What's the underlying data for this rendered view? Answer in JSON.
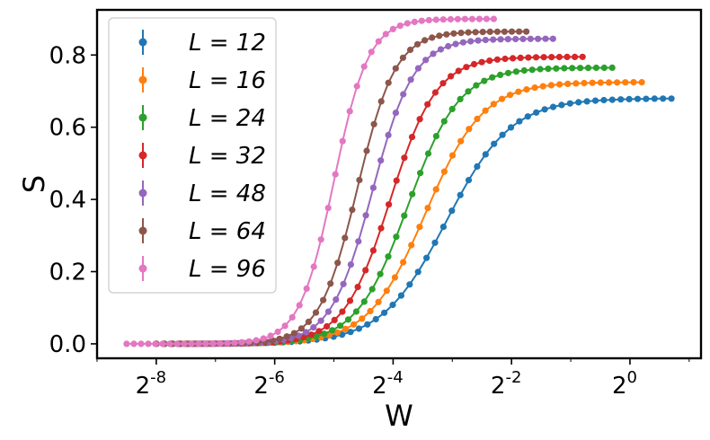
{
  "chart_data": {
    "type": "scatter",
    "title": "",
    "xlabel": "W",
    "ylabel": "S",
    "xscale": "log2",
    "xlim_log2": [
      -9.0,
      1.2
    ],
    "ylim": [
      -0.04,
      0.925
    ],
    "grid": false,
    "legend_position": "top-left",
    "x_ticks": [
      {
        "base": "2",
        "exp": "-8",
        "log2": -8
      },
      {
        "base": "2",
        "exp": "-6",
        "log2": -6
      },
      {
        "base": "2",
        "exp": "-4",
        "log2": -4
      },
      {
        "base": "2",
        "exp": "-2",
        "log2": -2
      },
      {
        "base": "2",
        "exp": "0",
        "log2": 0
      }
    ],
    "y_ticks": [
      {
        "label": "0.0",
        "value": 0.0
      },
      {
        "label": "0.2",
        "value": 0.2
      },
      {
        "label": "0.4",
        "value": 0.4
      },
      {
        "label": "0.6",
        "value": 0.6
      },
      {
        "label": "0.8",
        "value": 0.8
      }
    ],
    "series": [
      {
        "name": "L = 12",
        "legend_label": "L = 12",
        "color": "#1f77b4",
        "log2_w_start": -8.0,
        "log2_w_end": 0.7,
        "points": 62,
        "log2_w_mid": -3.1,
        "s_max": 0.68,
        "steepness": 1.15
      },
      {
        "name": "L = 16",
        "legend_label": "L = 16",
        "color": "#ff7f0e",
        "log2_w_start": -8.0,
        "log2_w_end": 0.2,
        "points": 60,
        "log2_w_mid": -3.45,
        "s_max": 0.725,
        "steepness": 1.3
      },
      {
        "name": "L = 24",
        "legend_label": "L = 24",
        "color": "#2ca02c",
        "log2_w_start": -8.0,
        "log2_w_end": -0.3,
        "points": 58,
        "log2_w_mid": -3.75,
        "s_max": 0.765,
        "steepness": 1.45
      },
      {
        "name": "L = 32",
        "legend_label": "L = 32",
        "color": "#d62728",
        "log2_w_start": -8.0,
        "log2_w_end": -0.8,
        "points": 56,
        "log2_w_mid": -4.05,
        "s_max": 0.795,
        "steepness": 1.6
      },
      {
        "name": "L = 48",
        "legend_label": "L = 48",
        "color": "#9467bd",
        "log2_w_start": -8.0,
        "log2_w_end": -1.3,
        "points": 54,
        "log2_w_mid": -4.35,
        "s_max": 0.845,
        "steepness": 1.8
      },
      {
        "name": "L = 64",
        "legend_label": "L = 64",
        "color": "#8c564b",
        "log2_w_start": -8.0,
        "log2_w_end": -1.75,
        "points": 52,
        "log2_w_mid": -4.6,
        "s_max": 0.865,
        "steepness": 1.95
      },
      {
        "name": "L = 96",
        "legend_label": "L = 96",
        "color": "#e377c2",
        "log2_w_start": -8.5,
        "log2_w_end": -2.3,
        "points": 52,
        "log2_w_mid": -5.0,
        "s_max": 0.9,
        "steepness": 2.15
      }
    ]
  }
}
